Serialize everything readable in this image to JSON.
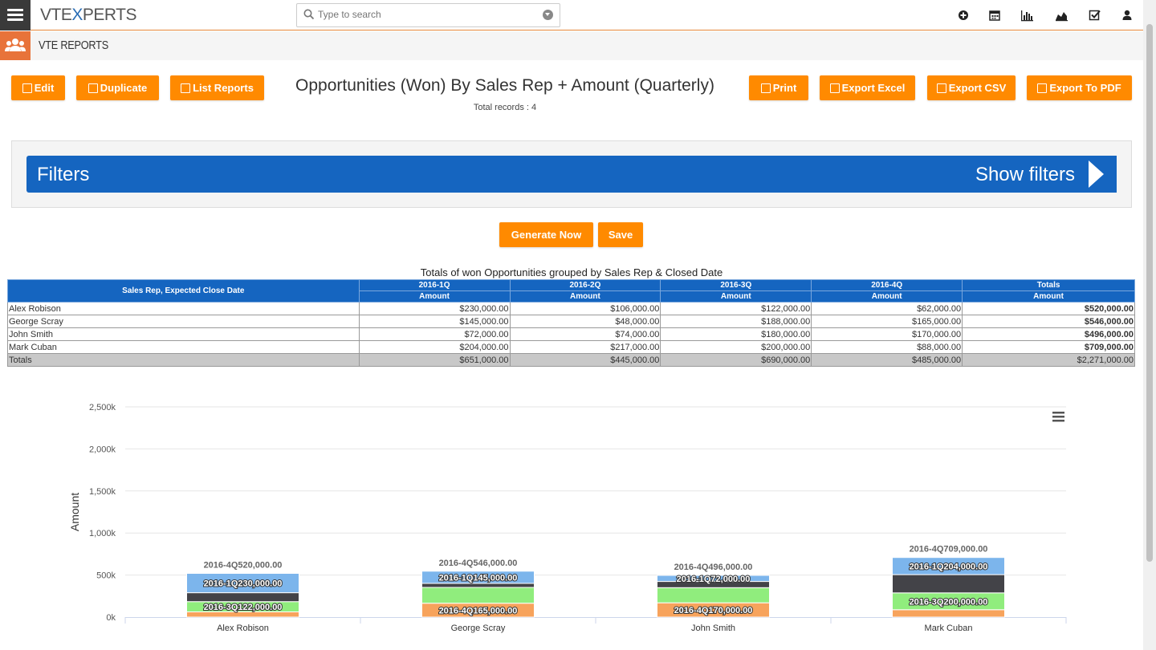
{
  "topbar": {
    "logo_prefix": "VTE",
    "logo_x": "X",
    "logo_suffix": "PERTS",
    "search_placeholder": "Type to search",
    "icons": [
      "plus-circle-icon",
      "calendar-icon",
      "bar-chart-icon",
      "area-chart-icon",
      "tasks-icon",
      "user-icon"
    ]
  },
  "module": {
    "title": "VTE REPORTS"
  },
  "actions": {
    "edit": "Edit",
    "duplicate": "Duplicate",
    "list_reports": "List Reports",
    "print": "Print",
    "export_excel": "Export Excel",
    "export_csv": "Export CSV",
    "export_pdf": "Export To PDF"
  },
  "report": {
    "title": "Opportunities (Won) By Sales Rep + Amount (Quarterly)",
    "total_records": "Total records : 4"
  },
  "filters": {
    "label": "Filters",
    "toggle_label": "Show filters"
  },
  "buttons": {
    "generate": "Generate Now",
    "save": "Save"
  },
  "table": {
    "caption": "Totals of won Opportunities grouped by Sales Rep & Closed Date",
    "row_header": "Sales Rep, Expected Close Date",
    "columns": [
      "2016-1Q",
      "2016-2Q",
      "2016-3Q",
      "2016-4Q",
      "Totals"
    ],
    "subheader": "Amount",
    "rows": [
      {
        "name": "Alex Robison",
        "values": [
          "$230,000.00",
          "$106,000.00",
          "$122,000.00",
          "$62,000.00",
          "$520,000.00"
        ]
      },
      {
        "name": "George Scray",
        "values": [
          "$145,000.00",
          "$48,000.00",
          "$188,000.00",
          "$165,000.00",
          "$546,000.00"
        ]
      },
      {
        "name": "John Smith",
        "values": [
          "$72,000.00",
          "$74,000.00",
          "$180,000.00",
          "$170,000.00",
          "$496,000.00"
        ]
      },
      {
        "name": "Mark Cuban",
        "values": [
          "$204,000.00",
          "$217,000.00",
          "$200,000.00",
          "$88,000.00",
          "$709,000.00"
        ]
      }
    ],
    "totals": {
      "name": "Totals",
      "values": [
        "$651,000.00",
        "$445,000.00",
        "$690,000.00",
        "$485,000.00",
        "$2,271,000.00"
      ]
    }
  },
  "chart_data": {
    "type": "bar",
    "stacked": true,
    "categories": [
      "Alex Robison",
      "George Scray",
      "John Smith",
      "Mark Cuban"
    ],
    "series": [
      {
        "name": "2016-1Q",
        "values": [
          230000,
          145000,
          72000,
          204000
        ],
        "color": "#7cb5ec"
      },
      {
        "name": "2016-2Q",
        "values": [
          106000,
          48000,
          74000,
          217000
        ],
        "color": "#434348"
      },
      {
        "name": "2016-3Q",
        "values": [
          122000,
          188000,
          180000,
          200000
        ],
        "color": "#90ed7d"
      },
      {
        "name": "2016-4Q",
        "values": [
          62000,
          165000,
          170000,
          88000
        ],
        "color": "#f7a35c"
      }
    ],
    "stack_labels": [
      "2016-4Q520,000.00",
      "2016-4Q546,000.00",
      "2016-4Q496,000.00",
      "2016-4Q709,000.00"
    ],
    "segment_labels": [
      [
        "2016-1Q230,000.00",
        "",
        "2016-3Q122,000.00",
        ""
      ],
      [
        "2016-1Q145,000.00",
        "",
        "",
        "2016-4Q165,000.00"
      ],
      [
        "2016-1Q72,000.00",
        "",
        "",
        "2016-4Q170,000.00"
      ],
      [
        "2016-1Q204,000.00",
        "",
        "2016-3Q200,000.00",
        ""
      ]
    ],
    "ylabel": "Amount",
    "yticks": [
      "0k",
      "500k",
      "1,000k",
      "1,500k",
      "2,000k",
      "2,500k"
    ],
    "ylim": [
      0,
      2500000
    ],
    "grid": true,
    "legend": "none"
  },
  "colors": {
    "accent": "#ff8a00",
    "primary": "#1565c0",
    "topbar_dark": "#3a3a3a"
  }
}
